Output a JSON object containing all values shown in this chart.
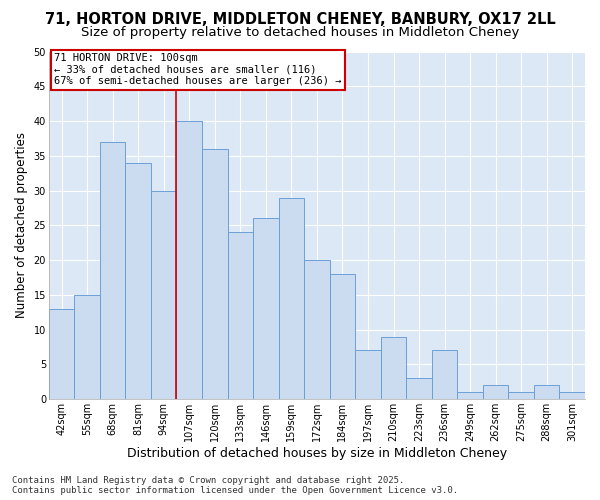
{
  "title1": "71, HORTON DRIVE, MIDDLETON CHENEY, BANBURY, OX17 2LL",
  "title2": "Size of property relative to detached houses in Middleton Cheney",
  "xlabel": "Distribution of detached houses by size in Middleton Cheney",
  "ylabel": "Number of detached properties",
  "categories": [
    "42sqm",
    "55sqm",
    "68sqm",
    "81sqm",
    "94sqm",
    "107sqm",
    "120sqm",
    "133sqm",
    "146sqm",
    "159sqm",
    "172sqm",
    "184sqm",
    "197sqm",
    "210sqm",
    "223sqm",
    "236sqm",
    "249sqm",
    "262sqm",
    "275sqm",
    "288sqm",
    "301sqm"
  ],
  "values": [
    13,
    15,
    37,
    34,
    30,
    40,
    36,
    24,
    26,
    29,
    20,
    18,
    7,
    9,
    3,
    7,
    1,
    2,
    1,
    2,
    1
  ],
  "bar_color": "#ccdcf0",
  "bar_edge_color": "#6a9fd8",
  "annotation_line1": "71 HORTON DRIVE: 100sqm",
  "annotation_line2": "← 33% of detached houses are smaller (116)",
  "annotation_line3": "67% of semi-detached houses are larger (236) →",
  "annotation_box_facecolor": "#ffffff",
  "annotation_box_edgecolor": "#cc0000",
  "vline_x": 4.5,
  "vline_color": "#cc0000",
  "ylim": [
    0,
    50
  ],
  "yticks": [
    0,
    5,
    10,
    15,
    20,
    25,
    30,
    35,
    40,
    45,
    50
  ],
  "plot_bg_color": "#dce8f5",
  "fig_bg_color": "#ffffff",
  "grid_color": "#ffffff",
  "footnote": "Contains HM Land Registry data © Crown copyright and database right 2025.\nContains public sector information licensed under the Open Government Licence v3.0.",
  "title1_fontsize": 10.5,
  "title2_fontsize": 9.5,
  "xlabel_fontsize": 9,
  "ylabel_fontsize": 8.5,
  "tick_fontsize": 7,
  "annotation_fontsize": 7.5,
  "footnote_fontsize": 6.5
}
